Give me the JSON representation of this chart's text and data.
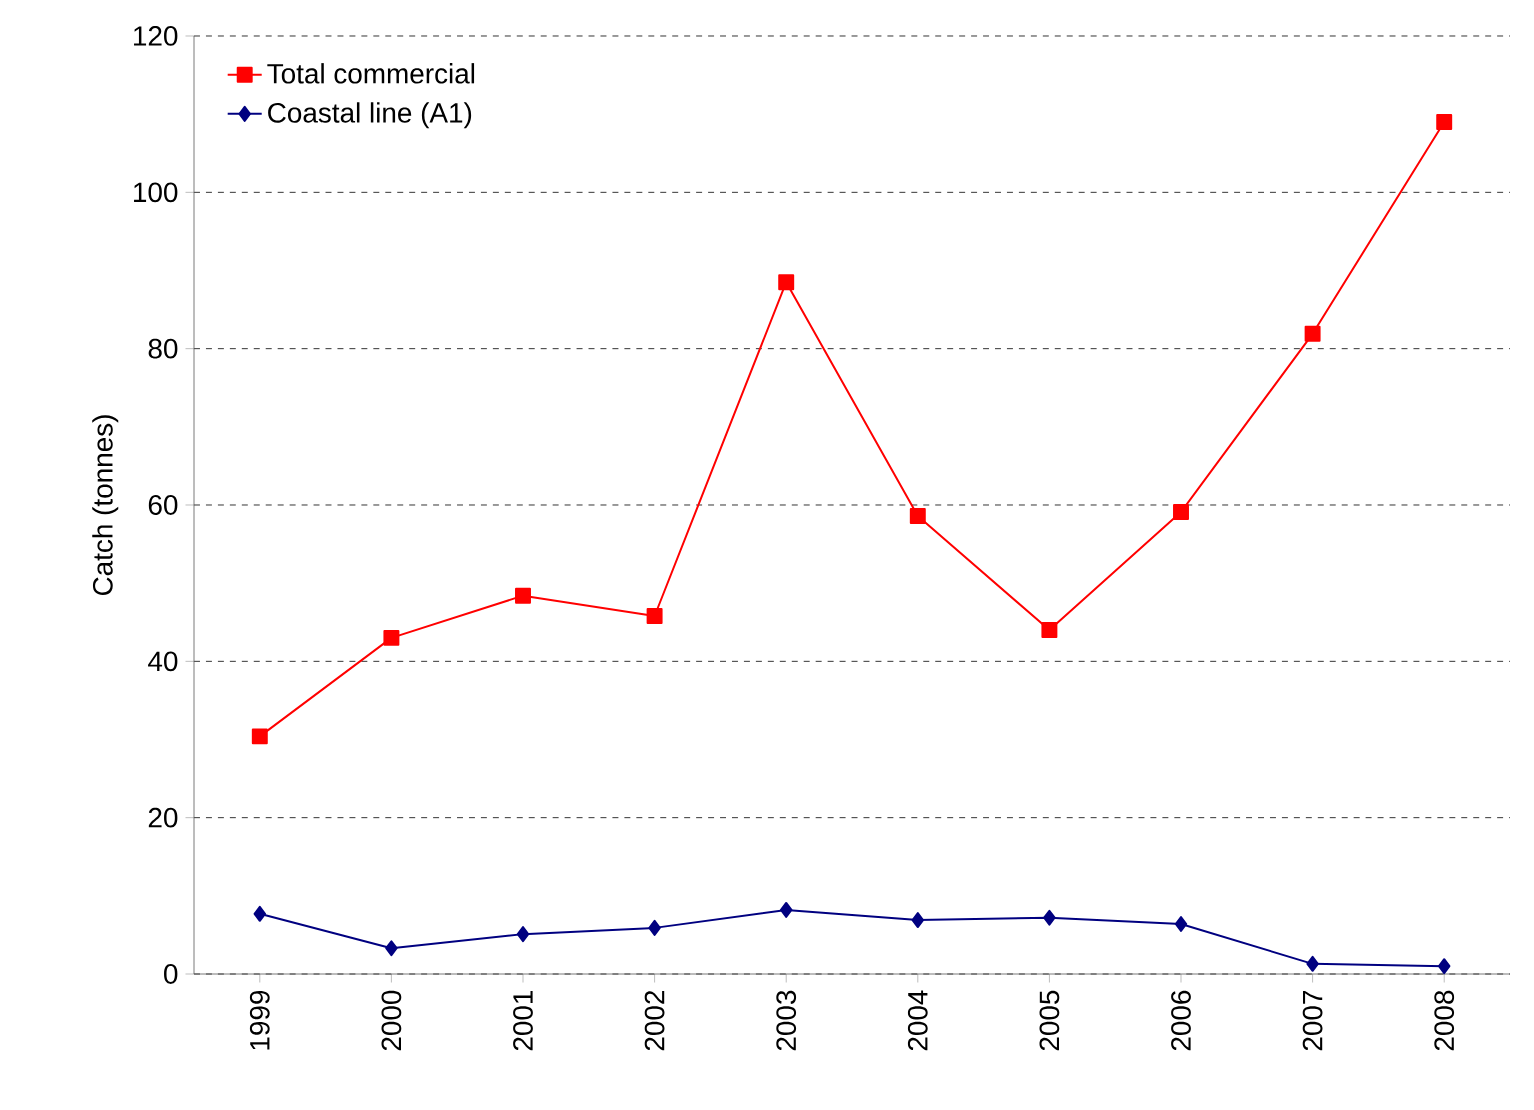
{
  "chart_data": {
    "type": "line",
    "ylabel": "Catch (tonnes)",
    "categories": [
      "1999",
      "2000",
      "2001",
      "2002",
      "2003",
      "2004",
      "2005",
      "2006",
      "2007",
      "2008"
    ],
    "series": [
      {
        "name": "Total commercial",
        "color": "#ff0000",
        "marker": "square",
        "values": [
          30.4,
          43,
          48.4,
          45.8,
          88.5,
          58.6,
          44,
          59.1,
          81.9,
          109
        ]
      },
      {
        "name": "Coastal line (A1)",
        "color": "#000080",
        "marker": "diamond",
        "values": [
          7.7,
          3.3,
          5.1,
          5.9,
          8.2,
          6.9,
          7.2,
          6.4,
          1.3,
          1.0
        ]
      }
    ],
    "ylim": [
      0,
      120
    ],
    "yticks": [
      0,
      20,
      40,
      60,
      80,
      100,
      120
    ],
    "grid": "y",
    "legend": "top left",
    "line_style": "solid"
  }
}
